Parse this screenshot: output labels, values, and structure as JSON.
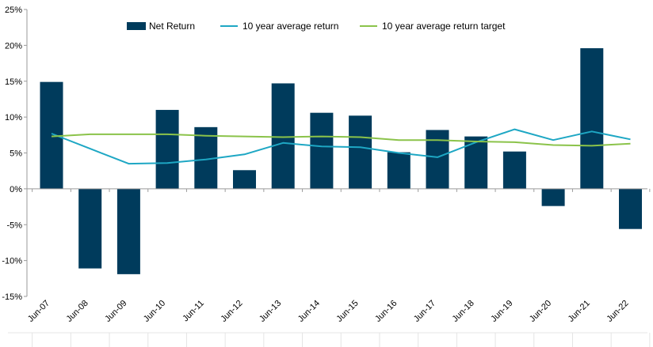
{
  "chart_data": {
    "type": "bar",
    "categories": [
      "Jun-07",
      "Jun-08",
      "Jun-09",
      "Jun-10",
      "Jun-11",
      "Jun-12",
      "Jun-13",
      "Jun-14",
      "Jun-15",
      "Jun-16",
      "Jun-17",
      "Jun-18",
      "Jun-19",
      "Jun-20",
      "Jun-21",
      "Jun-22"
    ],
    "series": [
      {
        "name": "Net Return",
        "kind": "bar",
        "color": "#003b5c",
        "values": [
          14.9,
          -11.1,
          -11.9,
          11.0,
          8.6,
          2.6,
          14.7,
          10.6,
          10.2,
          5.1,
          8.2,
          7.3,
          5.2,
          -2.4,
          19.6,
          -5.6
        ]
      },
      {
        "name": "10 year average return",
        "kind": "line",
        "color": "#1ea7c4",
        "values": [
          7.7,
          5.6,
          3.5,
          3.6,
          4.1,
          4.8,
          6.4,
          5.9,
          5.8,
          5.0,
          4.4,
          6.5,
          8.3,
          6.8,
          8.0,
          6.9
        ]
      },
      {
        "name": "10 year average return target",
        "kind": "line",
        "color": "#8bc34a",
        "values": [
          7.3,
          7.6,
          7.6,
          7.6,
          7.4,
          7.3,
          7.2,
          7.3,
          7.2,
          6.8,
          6.8,
          6.6,
          6.5,
          6.1,
          6.0,
          6.3
        ]
      }
    ],
    "ylim": [
      -15,
      25
    ],
    "yticks": [
      -15,
      -10,
      -5,
      0,
      5,
      10,
      15,
      20,
      25
    ],
    "ytick_format": "percent",
    "grid": false,
    "legend_position": "top"
  }
}
